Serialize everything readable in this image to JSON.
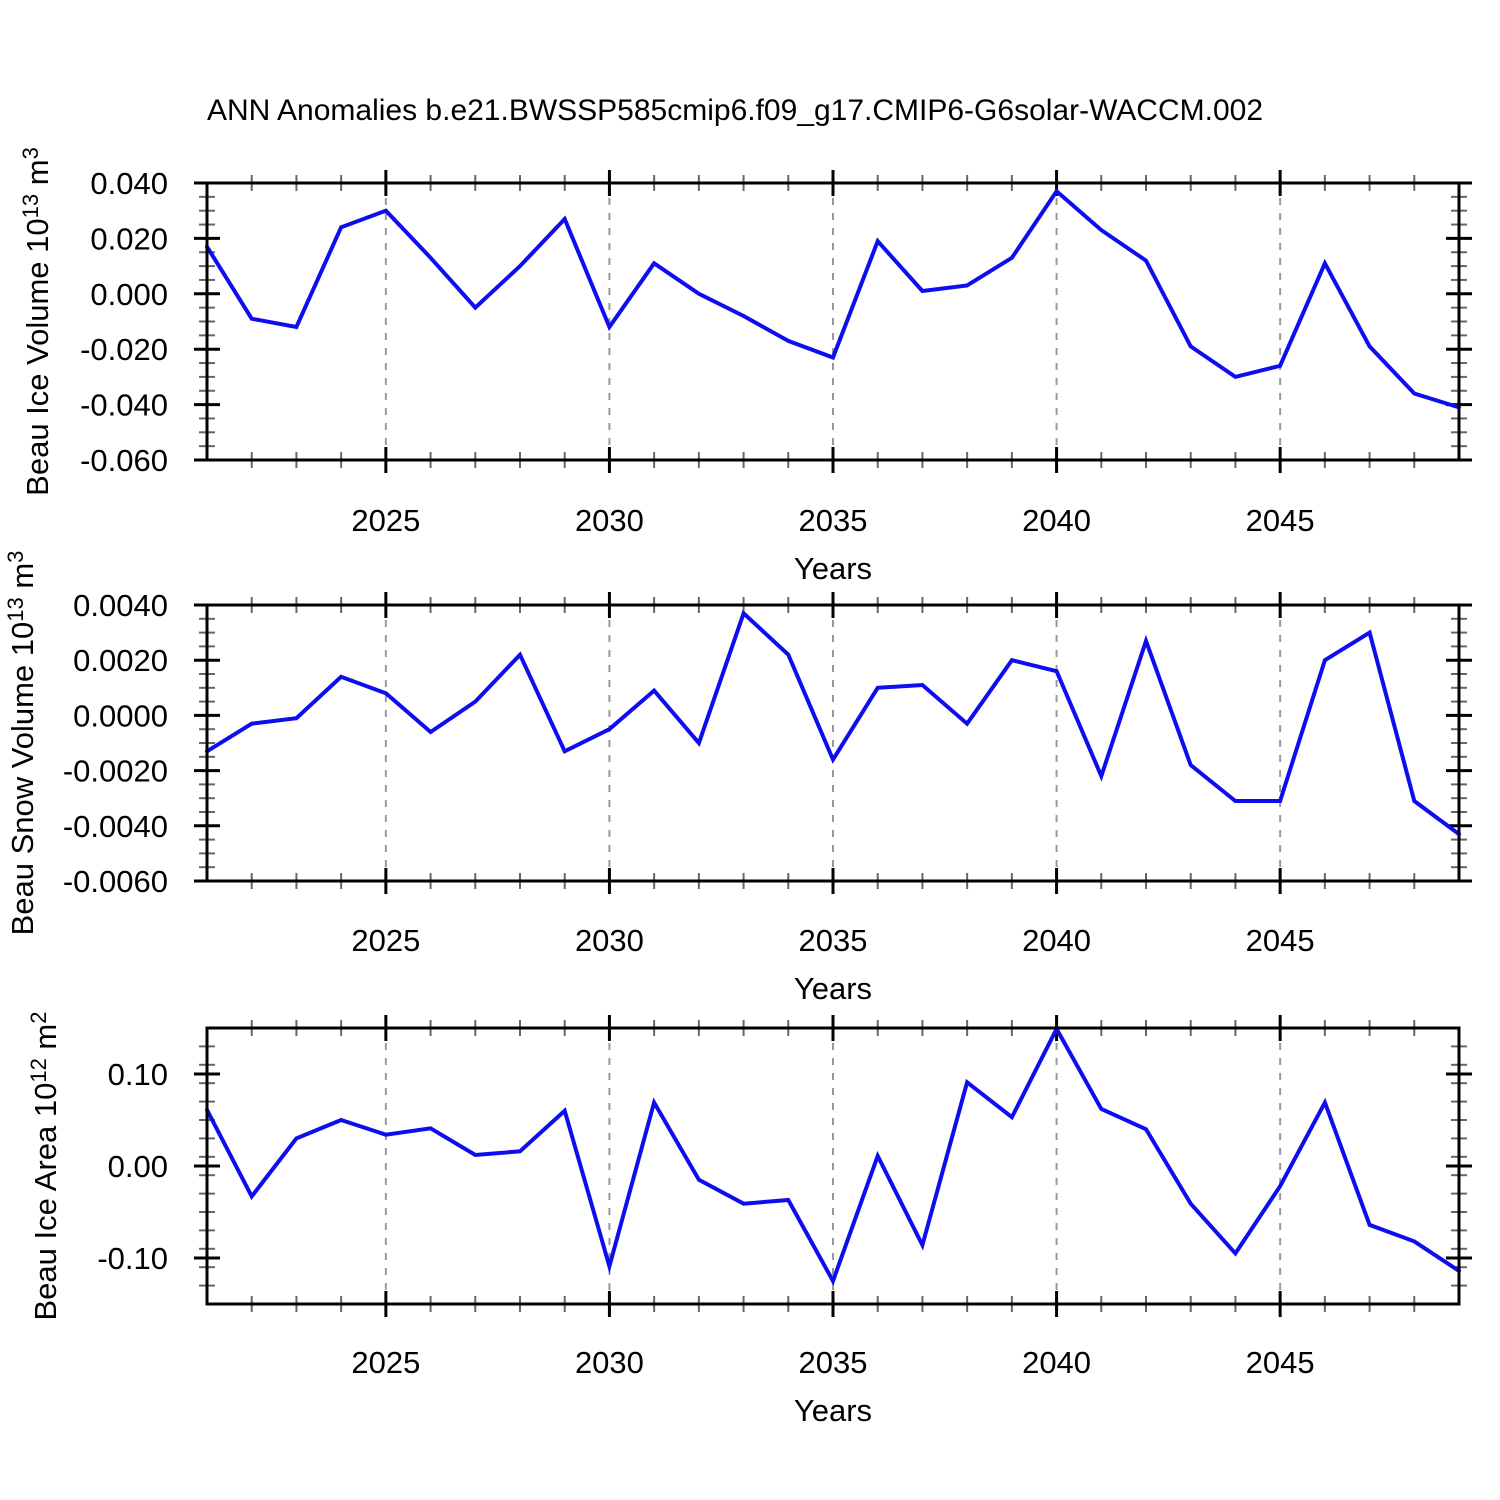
{
  "figure": {
    "title": "ANN Anomalies b.e21.BWSSP585cmip6.f09_g17.CMIP6-G6solar-WACCM.002",
    "line_color": "#0d0df0",
    "grid_color": "#999999",
    "axis_color": "#000000",
    "minor_tick_color": "#666666",
    "background": "#ffffff"
  },
  "chart_data": [
    {
      "type": "line",
      "name": "beau-ice-volume",
      "ylabel": "Beau Ice Volume 10^13 m^3",
      "xlabel": "Years",
      "x": [
        2021,
        2022,
        2023,
        2024,
        2025,
        2026,
        2027,
        2028,
        2029,
        2030,
        2031,
        2032,
        2033,
        2034,
        2035,
        2036,
        2037,
        2038,
        2039,
        2040,
        2041,
        2042,
        2043,
        2044,
        2045,
        2046,
        2047,
        2048,
        2049
      ],
      "values": [
        0.017,
        -0.009,
        -0.012,
        0.024,
        0.03,
        0.013,
        -0.005,
        0.01,
        0.027,
        -0.012,
        0.011,
        0.0,
        -0.008,
        -0.017,
        -0.023,
        0.019,
        0.001,
        0.003,
        0.013,
        0.037,
        0.023,
        0.012,
        -0.019,
        -0.03,
        -0.026,
        0.011,
        -0.019,
        -0.036,
        -0.041
      ],
      "xlim": [
        2021,
        2049
      ],
      "ylim": [
        -0.06,
        0.04
      ],
      "xticks": [
        2025,
        2030,
        2035,
        2040,
        2045
      ],
      "xtick_labels": [
        "2025",
        "2030",
        "2035",
        "2040",
        "2045"
      ],
      "xminor_step": 1,
      "yticks": [
        0.04,
        0.02,
        0.0,
        -0.02,
        -0.04,
        -0.06
      ],
      "ytick_labels": [
        "0.040",
        "0.020",
        "0.000",
        "-0.020",
        "-0.040",
        "-0.060"
      ],
      "yminor_step": 0.005,
      "grid": "vertical-dashed-at-major-x",
      "legend": "none"
    },
    {
      "type": "line",
      "name": "beau-snow-volume",
      "ylabel": "Beau Snow Volume 10^13 m^3",
      "xlabel": "Years",
      "x": [
        2021,
        2022,
        2023,
        2024,
        2025,
        2026,
        2027,
        2028,
        2029,
        2030,
        2031,
        2032,
        2033,
        2034,
        2035,
        2036,
        2037,
        2038,
        2039,
        2040,
        2041,
        2042,
        2043,
        2044,
        2045,
        2046,
        2047,
        2048,
        2049
      ],
      "values": [
        -0.0013,
        -0.0003,
        -0.0001,
        0.0014,
        0.0008,
        -0.0006,
        0.0005,
        0.0022,
        -0.0013,
        -0.0005,
        0.0009,
        -0.001,
        0.0037,
        0.0022,
        -0.0016,
        0.001,
        0.0011,
        -0.0003,
        0.002,
        0.0016,
        -0.0022,
        0.0027,
        -0.0018,
        -0.0031,
        -0.0031,
        0.002,
        0.003,
        -0.0031,
        -0.0043
      ],
      "xlim": [
        2021,
        2049
      ],
      "ylim": [
        -0.006,
        0.004
      ],
      "xticks": [
        2025,
        2030,
        2035,
        2040,
        2045
      ],
      "xtick_labels": [
        "2025",
        "2030",
        "2035",
        "2040",
        "2045"
      ],
      "xminor_step": 1,
      "yticks": [
        0.004,
        0.002,
        0.0,
        -0.002,
        -0.004,
        -0.006
      ],
      "ytick_labels": [
        "0.0040",
        "0.0020",
        "0.0000",
        "-0.0020",
        "-0.0040",
        "-0.0060"
      ],
      "yminor_step": 0.0005,
      "grid": "vertical-dashed-at-major-x",
      "legend": "none"
    },
    {
      "type": "line",
      "name": "beau-ice-area",
      "ylabel": "Beau Ice Area 10^12 m^2",
      "xlabel": "Years",
      "x": [
        2021,
        2022,
        2023,
        2024,
        2025,
        2026,
        2027,
        2028,
        2029,
        2030,
        2031,
        2032,
        2033,
        2034,
        2035,
        2036,
        2037,
        2038,
        2039,
        2040,
        2041,
        2042,
        2043,
        2044,
        2045,
        2046,
        2047,
        2048,
        2049
      ],
      "values": [
        0.061,
        -0.033,
        0.03,
        0.05,
        0.034,
        0.041,
        0.012,
        0.016,
        0.06,
        -0.109,
        0.069,
        -0.015,
        -0.041,
        -0.037,
        -0.125,
        0.011,
        -0.086,
        0.091,
        0.053,
        0.149,
        0.062,
        0.04,
        -0.041,
        -0.095,
        -0.022,
        0.069,
        -0.064,
        -0.082,
        -0.114
      ],
      "xlim": [
        2021,
        2049
      ],
      "ylim": [
        -0.15,
        0.15
      ],
      "xticks": [
        2025,
        2030,
        2035,
        2040,
        2045
      ],
      "xtick_labels": [
        "2025",
        "2030",
        "2035",
        "2040",
        "2045"
      ],
      "xminor_step": 1,
      "yticks": [
        0.1,
        0.0,
        -0.1
      ],
      "ytick_labels": [
        "0.10",
        "0.00",
        "-0.10"
      ],
      "yminor_step": 0.02,
      "grid": "vertical-dashed-at-major-x",
      "legend": "none"
    }
  ]
}
